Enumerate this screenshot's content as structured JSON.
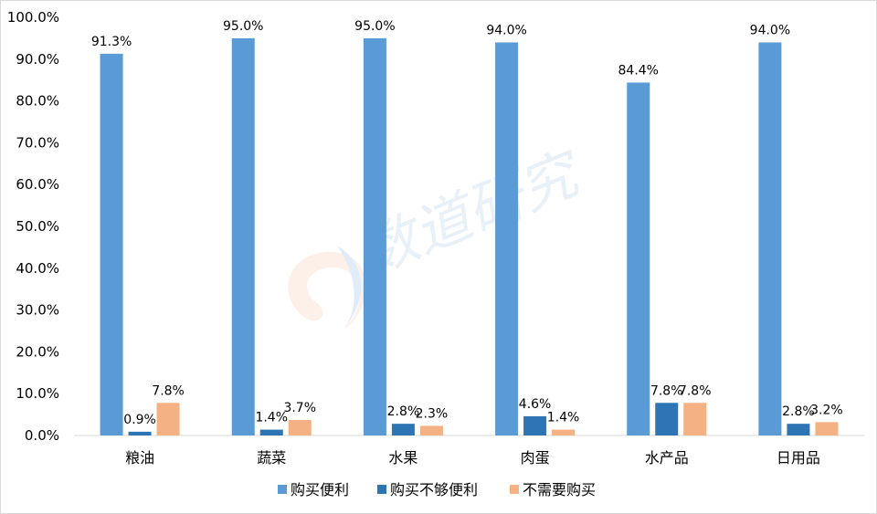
{
  "chart_data": {
    "type": "bar",
    "categories": [
      "粮油",
      "蔬菜",
      "水果",
      "肉蛋",
      "水产品",
      "日用品"
    ],
    "series": [
      {
        "name": "购买便利",
        "values": [
          91.3,
          95.0,
          95.0,
          94.0,
          84.4,
          94.0
        ],
        "labels": [
          "91.3%",
          "95.0%",
          "95.0%",
          "94.0%",
          "84.4%",
          "94.0%"
        ],
        "color": "#5b9bd5"
      },
      {
        "name": "购买不够便利",
        "values": [
          0.9,
          1.4,
          2.8,
          4.6,
          7.8,
          2.8
        ],
        "labels": [
          "0.9%",
          "1.4%",
          "2.8%",
          "4.6%",
          "7.8%",
          "2.8%"
        ],
        "color": "#2e75b6"
      },
      {
        "name": "不需要购买",
        "values": [
          7.8,
          3.7,
          2.3,
          1.4,
          7.8,
          3.2
        ],
        "labels": [
          "7.8%",
          "3.7%",
          "2.3%",
          "1.4%",
          "7.8%",
          "3.2%"
        ],
        "color": "#f4b183"
      }
    ],
    "ylim": [
      0,
      100
    ],
    "yticks": [
      "0.0%",
      "10.0%",
      "20.0%",
      "30.0%",
      "40.0%",
      "50.0%",
      "60.0%",
      "70.0%",
      "80.0%",
      "90.0%",
      "100.0%"
    ],
    "grid": false,
    "legend_position": "bottom"
  },
  "watermark": "数道研究"
}
